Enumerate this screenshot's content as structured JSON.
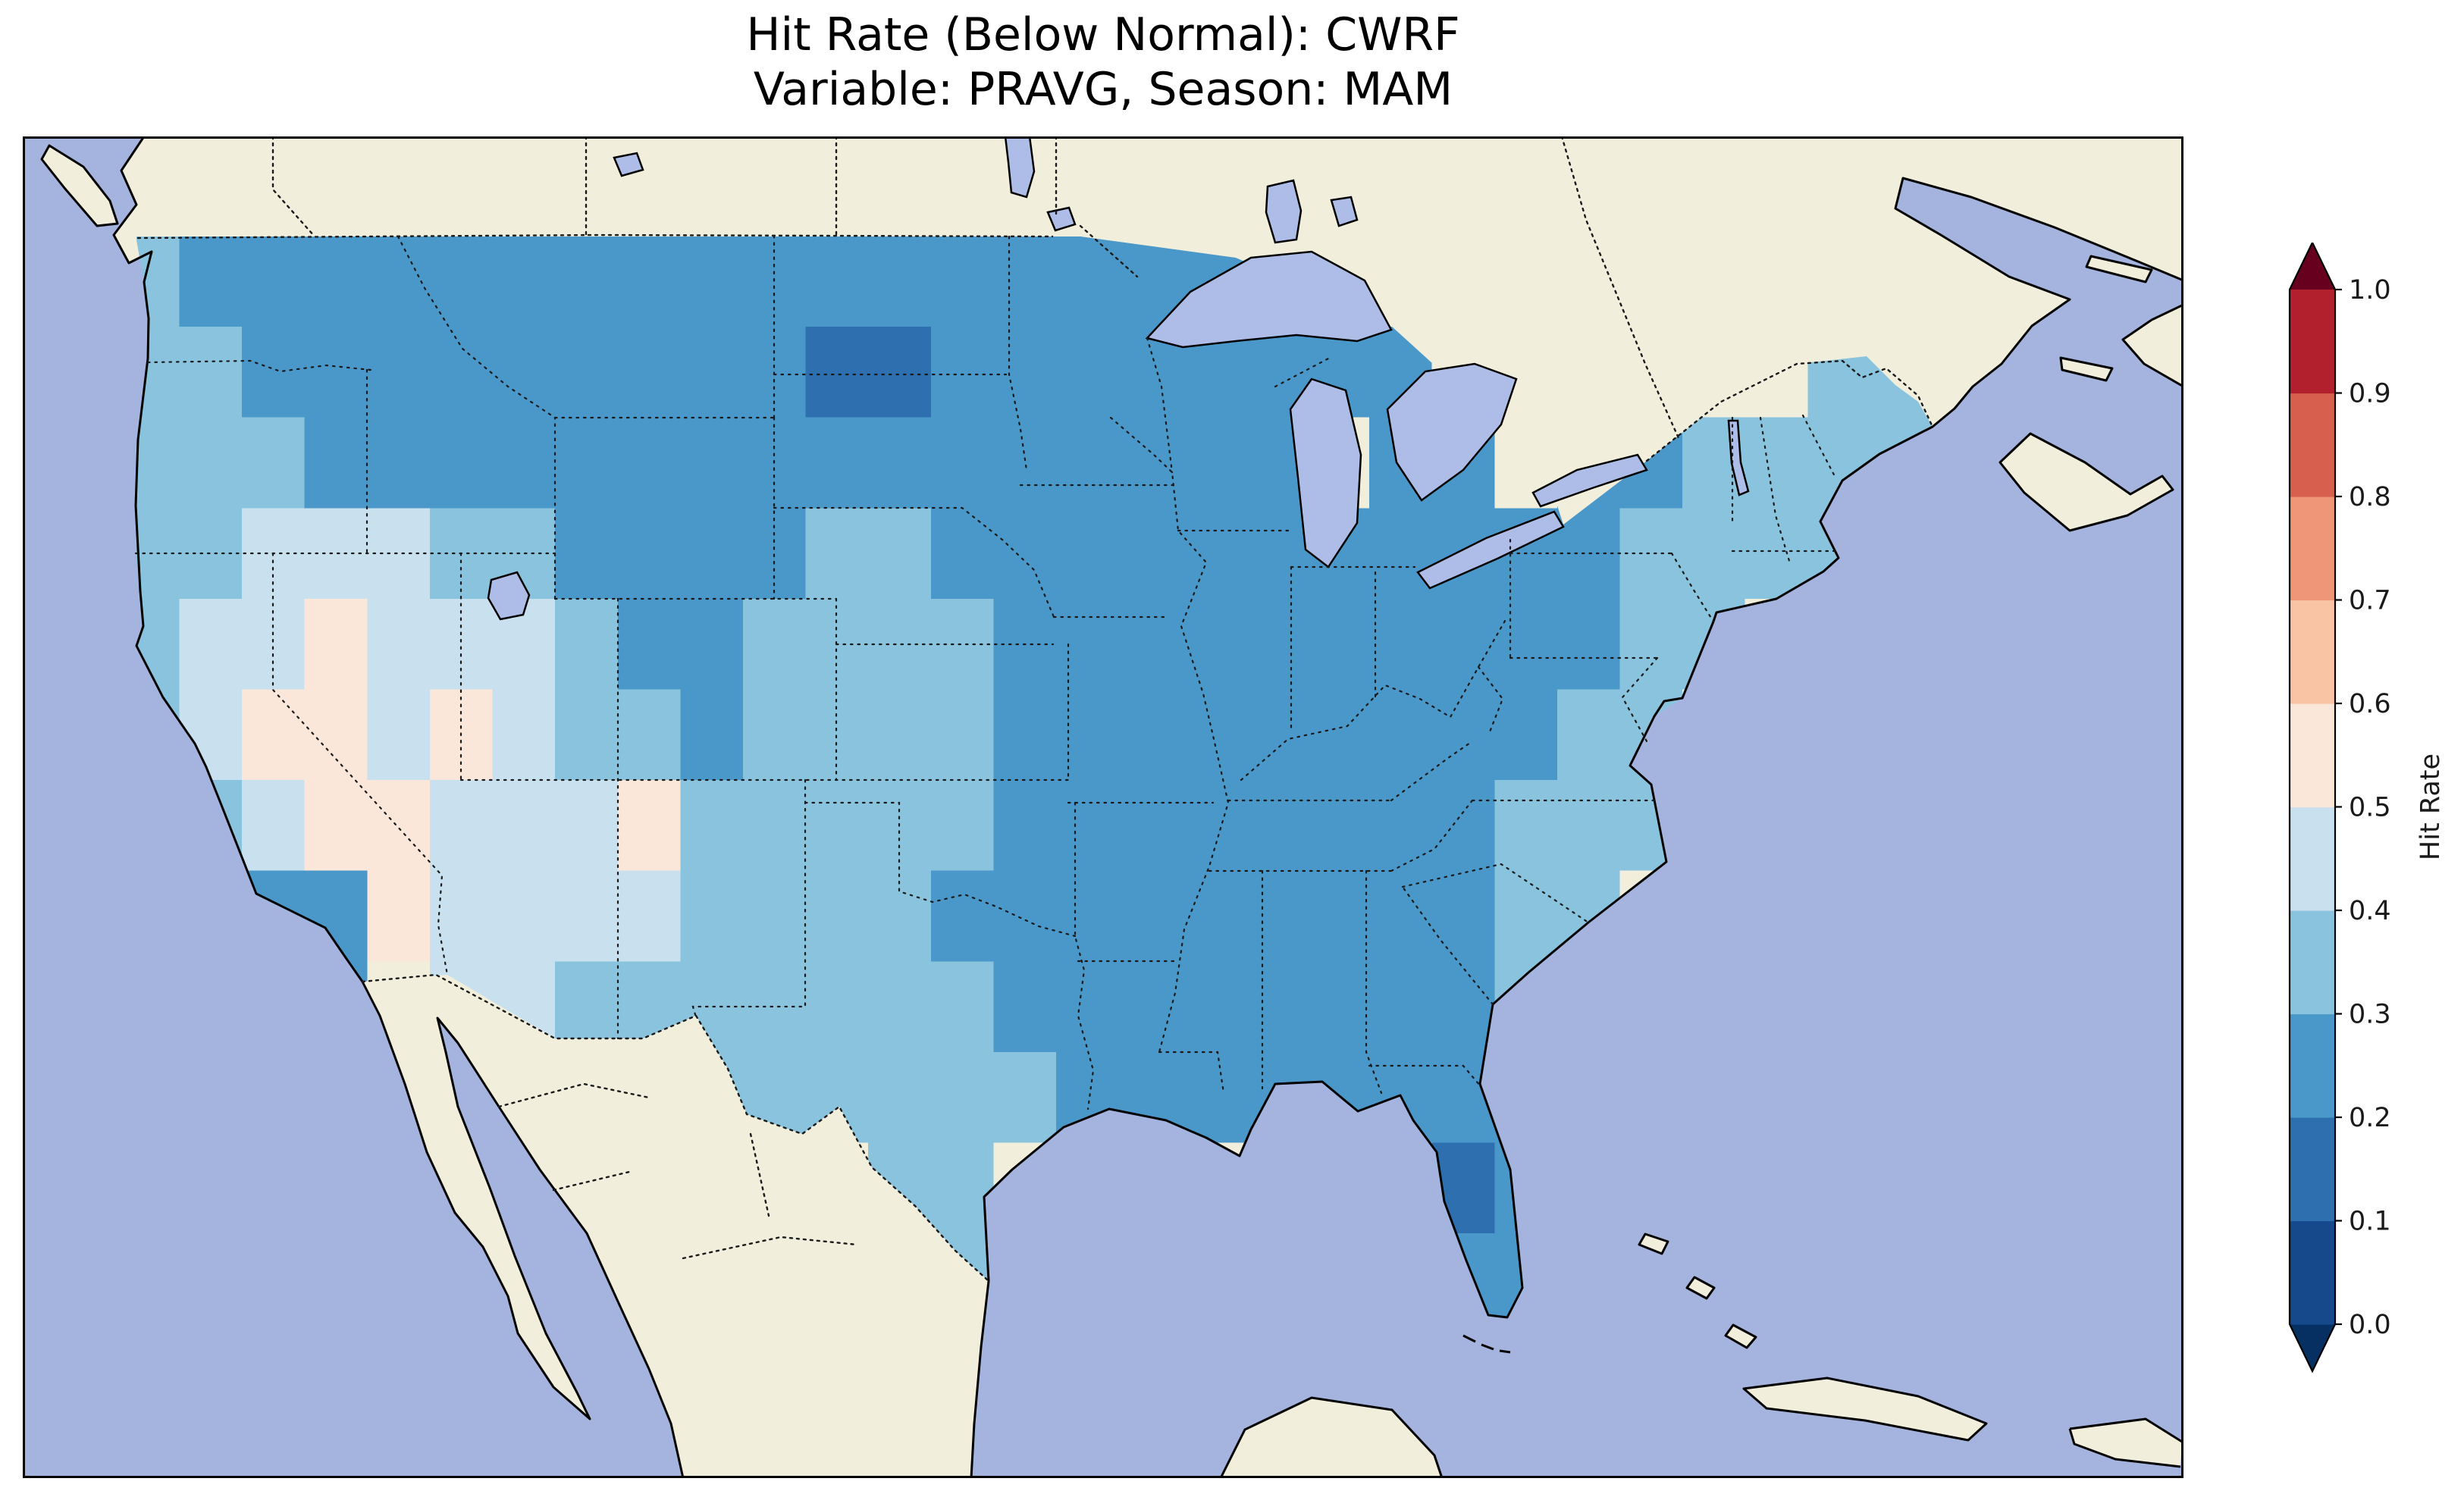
{
  "title": {
    "line1": "Hit Rate (Below Normal): CWRF",
    "line2": "Variable: PRAVG, Season: MAM"
  },
  "colorbar": {
    "label": "Hit Rate",
    "ticks": [
      "1.0",
      "0.9",
      "0.8",
      "0.7",
      "0.6",
      "0.5",
      "0.4",
      "0.3",
      "0.2",
      "0.1",
      "0.0"
    ],
    "bin_colors": [
      "#15498c",
      "#2e6fb0",
      "#4a98c9",
      "#8ac3dd",
      "#c9e0ef",
      "#fbe7da",
      "#f9c4a4",
      "#ee9677",
      "#d65f4d",
      "#b21f2d"
    ],
    "under_color": "#053061",
    "over_color": "#67001f",
    "outline_color": "#000000"
  },
  "map": {
    "ocean_color": "#a5b4df",
    "land_color": "#f1eedc",
    "lake_color": "#aebde8",
    "coastline_color": "#000000",
    "border_color": "#1a1a1a",
    "extent": {
      "lon_min": -128,
      "lon_max": -59,
      "lat_min": 21.6,
      "lat_max": 51.2
    }
  },
  "chart_data": {
    "type": "heatmap",
    "title": "Hit Rate (Below Normal): CWRF",
    "subtitle": "Variable: PRAVG, Season: MAM",
    "model": "CWRF",
    "variable": "PRAVG",
    "season": "MAM",
    "category": "Below Normal",
    "region": "Contiguous United States",
    "colorbar_label": "Hit Rate",
    "value_bins": [
      0.0,
      0.1,
      0.2,
      0.3,
      0.4,
      0.5,
      0.6,
      0.7,
      0.8,
      0.9,
      1.0
    ],
    "colorbar_range": [
      0.0,
      1.0
    ],
    "legend_position": "right",
    "grid": {
      "cell_size_deg": 2,
      "lons": [
        -124,
        -122,
        -120,
        -118,
        -116,
        -114,
        -112,
        -110,
        -108,
        -106,
        -104,
        -102,
        -100,
        -98,
        -96,
        -94,
        -92,
        -90,
        -88,
        -86,
        -84,
        -82,
        -80,
        -78,
        -76,
        -74,
        -72,
        -70,
        -68
      ],
      "lats": [
        48,
        46,
        44,
        42,
        40,
        38,
        36,
        34,
        32,
        30,
        28,
        26
      ],
      "values": [
        [
          0.35,
          0.25,
          0.25,
          0.25,
          0.25,
          0.25,
          0.25,
          0.25,
          0.25,
          0.25,
          0.25,
          0.25,
          0.25,
          0.25,
          0.25,
          0.25,
          0.25,
          0.25,
          0.25,
          null,
          null,
          null,
          null,
          null,
          null,
          null,
          null,
          null,
          0.35
        ],
        [
          0.35,
          0.35,
          0.25,
          0.25,
          0.25,
          0.25,
          0.25,
          0.25,
          0.25,
          0.25,
          0.25,
          0.15,
          0.15,
          0.25,
          0.25,
          0.25,
          0.25,
          0.25,
          0.25,
          0.25,
          0.25,
          null,
          null,
          null,
          null,
          null,
          null,
          0.35,
          0.35
        ],
        [
          0.35,
          0.35,
          0.35,
          0.25,
          0.25,
          0.25,
          0.25,
          0.25,
          0.25,
          0.25,
          0.25,
          0.25,
          0.25,
          0.25,
          0.25,
          0.25,
          0.25,
          0.25,
          0.25,
          null,
          0.25,
          0.25,
          null,
          0.25,
          0.25,
          0.35,
          0.35,
          0.35,
          0.35
        ],
        [
          0.35,
          0.35,
          0.45,
          0.45,
          0.45,
          0.35,
          0.35,
          0.25,
          0.25,
          0.25,
          0.25,
          0.35,
          0.35,
          0.25,
          0.25,
          0.25,
          0.25,
          0.25,
          0.25,
          0.25,
          0.25,
          0.25,
          0.25,
          0.25,
          0.35,
          0.35,
          0.35,
          0.35,
          null
        ],
        [
          0.35,
          0.45,
          0.45,
          0.55,
          0.45,
          0.45,
          0.45,
          0.35,
          0.25,
          0.25,
          0.35,
          0.35,
          0.35,
          0.35,
          0.25,
          0.25,
          0.25,
          0.25,
          0.25,
          0.25,
          0.25,
          0.25,
          0.25,
          0.25,
          0.35,
          0.35,
          null,
          null,
          null
        ],
        [
          0.35,
          0.45,
          0.55,
          0.55,
          0.45,
          0.55,
          0.45,
          0.35,
          0.35,
          0.25,
          0.35,
          0.35,
          0.35,
          0.35,
          0.25,
          0.25,
          0.25,
          0.25,
          0.25,
          0.25,
          0.25,
          0.25,
          0.25,
          0.35,
          0.35,
          null,
          null,
          null,
          null
        ],
        [
          null,
          0.35,
          0.45,
          0.55,
          0.55,
          0.45,
          0.45,
          0.45,
          0.55,
          0.35,
          0.35,
          0.35,
          0.35,
          0.35,
          0.25,
          0.25,
          0.25,
          0.25,
          0.25,
          0.25,
          0.25,
          0.25,
          0.35,
          0.35,
          0.35,
          null,
          null,
          null,
          null
        ],
        [
          null,
          null,
          0.25,
          0.25,
          0.55,
          0.45,
          0.45,
          0.45,
          0.45,
          0.35,
          0.35,
          0.35,
          0.35,
          0.25,
          0.25,
          0.25,
          0.25,
          0.25,
          0.25,
          0.25,
          0.25,
          0.25,
          0.35,
          0.35,
          null,
          null,
          null,
          null,
          null
        ],
        [
          null,
          null,
          null,
          0.25,
          null,
          0.45,
          0.45,
          0.35,
          0.35,
          0.35,
          0.35,
          0.35,
          0.35,
          0.35,
          0.25,
          0.25,
          0.25,
          0.25,
          0.25,
          0.25,
          0.25,
          0.25,
          0.35,
          null,
          null,
          null,
          null,
          null,
          null
        ],
        [
          null,
          null,
          null,
          null,
          null,
          null,
          null,
          null,
          null,
          0.35,
          0.35,
          0.35,
          0.35,
          0.35,
          0.35,
          0.25,
          0.25,
          0.25,
          0.25,
          0.25,
          0.25,
          0.25,
          0.25,
          null,
          null,
          null,
          null,
          null,
          null
        ],
        [
          null,
          null,
          null,
          null,
          null,
          null,
          null,
          null,
          null,
          null,
          null,
          null,
          0.35,
          0.35,
          null,
          null,
          null,
          null,
          null,
          null,
          null,
          0.15,
          0.25,
          null,
          null,
          null,
          null,
          null,
          null
        ],
        [
          null,
          null,
          null,
          null,
          null,
          null,
          null,
          null,
          null,
          null,
          null,
          null,
          null,
          0.35,
          null,
          null,
          null,
          null,
          null,
          null,
          null,
          0.25,
          0.25,
          null,
          null,
          null,
          null,
          null,
          null
        ]
      ]
    }
  }
}
